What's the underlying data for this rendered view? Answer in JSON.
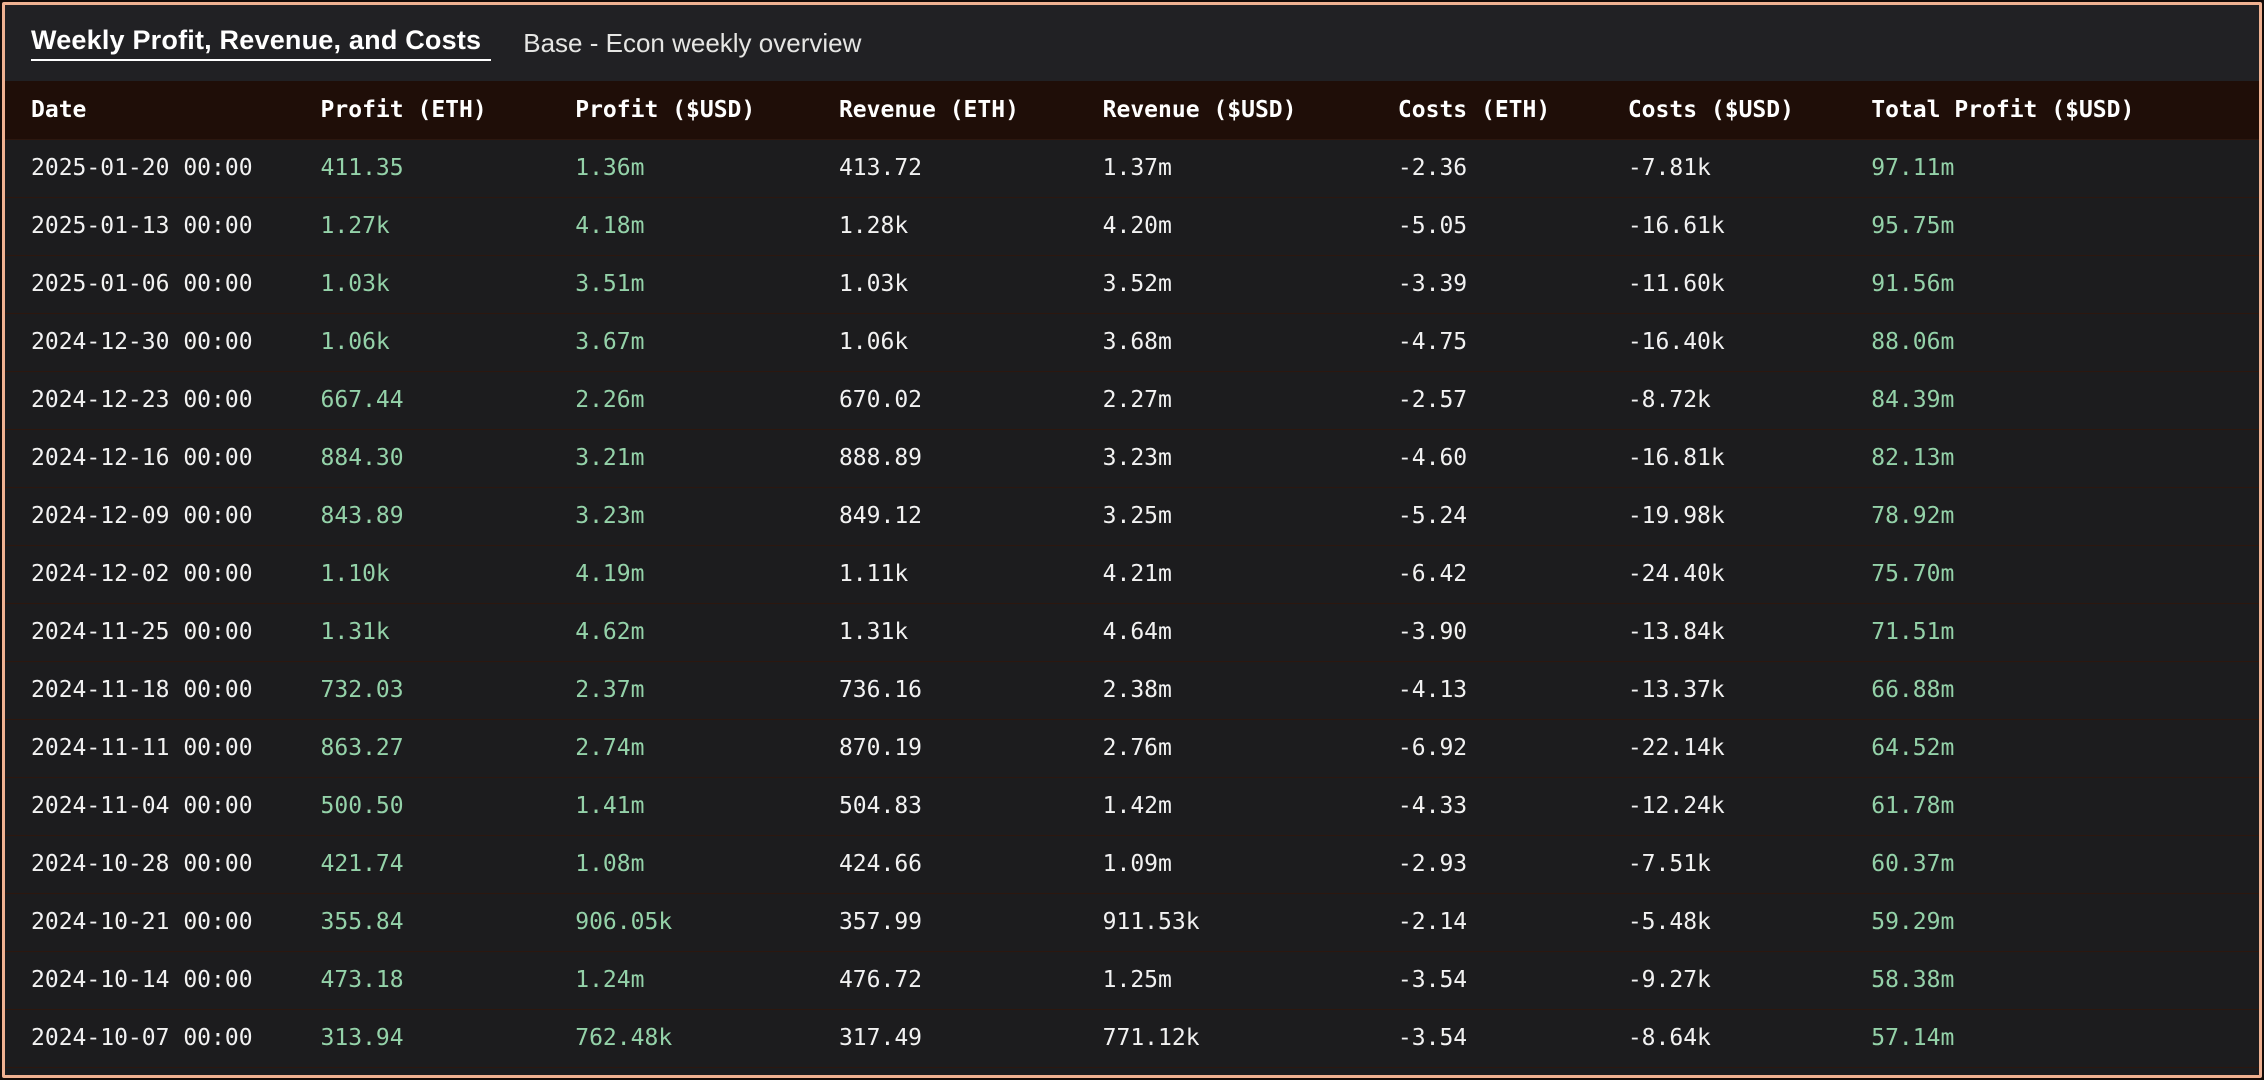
{
  "panel": {
    "title": "Weekly Profit, Revenue, and Costs",
    "subtitle": "Base - Econ weekly overview"
  },
  "colors": {
    "accent_border": "#efb191",
    "header_bg": "#1f0e08",
    "row_bg": "#1c1c1e",
    "separator": "#2c170f",
    "green_text": "#94d2a9",
    "white_text": "#f2f2f2"
  },
  "table": {
    "columns": [
      {
        "id": "date",
        "label": "Date",
        "width": "14%",
        "color": "white"
      },
      {
        "id": "profit-eth",
        "label": "Profit (ETH)",
        "width": "11.3%",
        "color": "green"
      },
      {
        "id": "profit-usd",
        "label": "Profit ($USD)",
        "width": "11.7%",
        "color": "green"
      },
      {
        "id": "revenue-eth",
        "label": "Revenue (ETH)",
        "width": "11.7%",
        "color": "white"
      },
      {
        "id": "revenue-usd",
        "label": "Revenue ($USD)",
        "width": "13.1%",
        "color": "white"
      },
      {
        "id": "costs-eth",
        "label": "Costs (ETH)",
        "width": "10.2%",
        "color": "white"
      },
      {
        "id": "costs-usd",
        "label": "Costs ($USD)",
        "width": "10.8%",
        "color": "white"
      },
      {
        "id": "total-profit-usd",
        "label": "Total Profit ($USD)",
        "width": "17.2%",
        "color": "green"
      }
    ],
    "rows": [
      [
        "2025-01-20 00:00",
        "411.35",
        "1.36m",
        "413.72",
        "1.37m",
        "-2.36",
        "-7.81k",
        "97.11m"
      ],
      [
        "2025-01-13 00:00",
        "1.27k",
        "4.18m",
        "1.28k",
        "4.20m",
        "-5.05",
        "-16.61k",
        "95.75m"
      ],
      [
        "2025-01-06 00:00",
        "1.03k",
        "3.51m",
        "1.03k",
        "3.52m",
        "-3.39",
        "-11.60k",
        "91.56m"
      ],
      [
        "2024-12-30 00:00",
        "1.06k",
        "3.67m",
        "1.06k",
        "3.68m",
        "-4.75",
        "-16.40k",
        "88.06m"
      ],
      [
        "2024-12-23 00:00",
        "667.44",
        "2.26m",
        "670.02",
        "2.27m",
        "-2.57",
        "-8.72k",
        "84.39m"
      ],
      [
        "2024-12-16 00:00",
        "884.30",
        "3.21m",
        "888.89",
        "3.23m",
        "-4.60",
        "-16.81k",
        "82.13m"
      ],
      [
        "2024-12-09 00:00",
        "843.89",
        "3.23m",
        "849.12",
        "3.25m",
        "-5.24",
        "-19.98k",
        "78.92m"
      ],
      [
        "2024-12-02 00:00",
        "1.10k",
        "4.19m",
        "1.11k",
        "4.21m",
        "-6.42",
        "-24.40k",
        "75.70m"
      ],
      [
        "2024-11-25 00:00",
        "1.31k",
        "4.62m",
        "1.31k",
        "4.64m",
        "-3.90",
        "-13.84k",
        "71.51m"
      ],
      [
        "2024-11-18 00:00",
        "732.03",
        "2.37m",
        "736.16",
        "2.38m",
        "-4.13",
        "-13.37k",
        "66.88m"
      ],
      [
        "2024-11-11 00:00",
        "863.27",
        "2.74m",
        "870.19",
        "2.76m",
        "-6.92",
        "-22.14k",
        "64.52m"
      ],
      [
        "2024-11-04 00:00",
        "500.50",
        "1.41m",
        "504.83",
        "1.42m",
        "-4.33",
        "-12.24k",
        "61.78m"
      ],
      [
        "2024-10-28 00:00",
        "421.74",
        "1.08m",
        "424.66",
        "1.09m",
        "-2.93",
        "-7.51k",
        "60.37m"
      ],
      [
        "2024-10-21 00:00",
        "355.84",
        "906.05k",
        "357.99",
        "911.53k",
        "-2.14",
        "-5.48k",
        "59.29m"
      ],
      [
        "2024-10-14 00:00",
        "473.18",
        "1.24m",
        "476.72",
        "1.25m",
        "-3.54",
        "-9.27k",
        "58.38m"
      ],
      [
        "2024-10-07 00:00",
        "313.94",
        "762.48k",
        "317.49",
        "771.12k",
        "-3.54",
        "-8.64k",
        "57.14m"
      ]
    ]
  },
  "chart_data": {
    "type": "table",
    "title": "Weekly Profit, Revenue, and Costs",
    "columns": [
      "Date",
      "Profit (ETH)",
      "Profit ($USD)",
      "Revenue (ETH)",
      "Revenue ($USD)",
      "Costs (ETH)",
      "Costs ($USD)",
      "Total Profit ($USD)"
    ],
    "rows": [
      [
        "2025-01-20 00:00",
        "411.35",
        "1.36m",
        "413.72",
        "1.37m",
        "-2.36",
        "-7.81k",
        "97.11m"
      ],
      [
        "2025-01-13 00:00",
        "1.27k",
        "4.18m",
        "1.28k",
        "4.20m",
        "-5.05",
        "-16.61k",
        "95.75m"
      ],
      [
        "2025-01-06 00:00",
        "1.03k",
        "3.51m",
        "1.03k",
        "3.52m",
        "-3.39",
        "-11.60k",
        "91.56m"
      ],
      [
        "2024-12-30 00:00",
        "1.06k",
        "3.67m",
        "1.06k",
        "3.68m",
        "-4.75",
        "-16.40k",
        "88.06m"
      ],
      [
        "2024-12-23 00:00",
        "667.44",
        "2.26m",
        "670.02",
        "2.27m",
        "-2.57",
        "-8.72k",
        "84.39m"
      ],
      [
        "2024-12-16 00:00",
        "884.30",
        "3.21m",
        "888.89",
        "3.23m",
        "-4.60",
        "-16.81k",
        "82.13m"
      ],
      [
        "2024-12-09 00:00",
        "843.89",
        "3.23m",
        "849.12",
        "3.25m",
        "-5.24",
        "-19.98k",
        "78.92m"
      ],
      [
        "2024-12-02 00:00",
        "1.10k",
        "4.19m",
        "1.11k",
        "4.21m",
        "-6.42",
        "-24.40k",
        "75.70m"
      ],
      [
        "2024-11-25 00:00",
        "1.31k",
        "4.62m",
        "1.31k",
        "4.64m",
        "-3.90",
        "-13.84k",
        "71.51m"
      ],
      [
        "2024-11-18 00:00",
        "732.03",
        "2.37m",
        "736.16",
        "2.38m",
        "-4.13",
        "-13.37k",
        "66.88m"
      ],
      [
        "2024-11-11 00:00",
        "863.27",
        "2.74m",
        "870.19",
        "2.76m",
        "-6.92",
        "-22.14k",
        "64.52m"
      ],
      [
        "2024-11-04 00:00",
        "500.50",
        "1.41m",
        "504.83",
        "1.42m",
        "-4.33",
        "-12.24k",
        "61.78m"
      ],
      [
        "2024-10-28 00:00",
        "421.74",
        "1.08m",
        "424.66",
        "1.09m",
        "-2.93",
        "-7.51k",
        "60.37m"
      ],
      [
        "2024-10-21 00:00",
        "355.84",
        "906.05k",
        "357.99",
        "911.53k",
        "-2.14",
        "-5.48k",
        "59.29m"
      ],
      [
        "2024-10-14 00:00",
        "473.18",
        "1.24m",
        "476.72",
        "1.25m",
        "-3.54",
        "-9.27k",
        "58.38m"
      ],
      [
        "2024-10-07 00:00",
        "313.94",
        "762.48k",
        "317.49",
        "771.12k",
        "-3.54",
        "-8.64k",
        "57.14m"
      ]
    ]
  }
}
